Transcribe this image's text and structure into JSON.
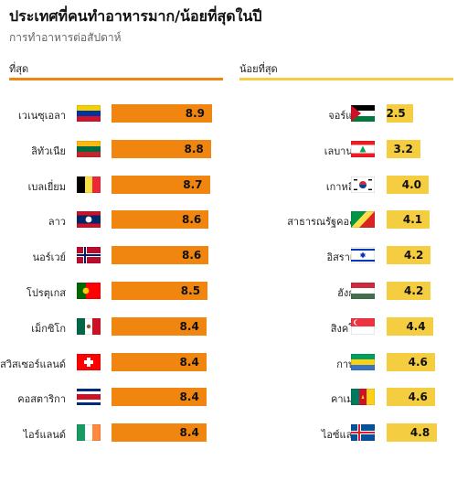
{
  "header": {
    "title": "ประเทศที่คนทำอาหารมาก/น้อยที่สุดในปี",
    "subtitle": "การทำอาหารต่อสัปดาห์"
  },
  "colors": {
    "most": "#f0860f",
    "least": "#f5cd40"
  },
  "chart_data": [
    {
      "type": "bar",
      "title": "ที่สุด",
      "categories": [
        "เวเนซุเอลา",
        "ลิทัวเนีย",
        "เบลเยี่ยม",
        "ลาว",
        "นอร์เวย์",
        "โปรตุเกส",
        "เม็กซิโก",
        "สวิสเซอร์แลนด์",
        "คอสตาริกา",
        "ไอร์แลนด์"
      ],
      "values": [
        8.9,
        8.8,
        8.7,
        8.6,
        8.6,
        8.5,
        8.4,
        8.4,
        8.4,
        8.4
      ],
      "value_labels": [
        "8.9",
        "8.8",
        "8.7",
        "8.6",
        "8.6",
        "8.5",
        "8.4",
        "8.4",
        "8.4",
        "8.4"
      ],
      "flags": [
        "venezuela-flag",
        "lithuania-flag",
        "belgium-flag",
        "laos-flag",
        "norway-flag",
        "portugal-flag",
        "mexico-flag",
        "switzerland-flag",
        "costa-rica-flag",
        "ireland-flag"
      ]
    },
    {
      "type": "bar",
      "title": "น้อยที่สุด",
      "categories": [
        "จอร์แดน",
        "เลบานอน",
        "เกาหลีใต้",
        "สาธารณรัฐคองโก",
        "อิสราเอล",
        "ฮังการี",
        "สิงคโปร์",
        "กาบอง",
        "คาเมรูน",
        "ไอซ์แลนด์"
      ],
      "values": [
        2.5,
        3.2,
        4.0,
        4.1,
        4.2,
        4.2,
        4.4,
        4.6,
        4.6,
        4.8
      ],
      "value_labels": [
        "2.5",
        "3.2",
        "4.0",
        "4.1",
        "4.2",
        "4.2",
        "4.4",
        "4.6",
        "4.6",
        "4.8"
      ],
      "flags": [
        "jordan-flag",
        "lebanon-flag",
        "south-korea-flag",
        "republic-of-congo-flag",
        "israel-flag",
        "hungary-flag",
        "singapore-flag",
        "gabon-flag",
        "cameroon-flag",
        "iceland-flag"
      ]
    }
  ]
}
